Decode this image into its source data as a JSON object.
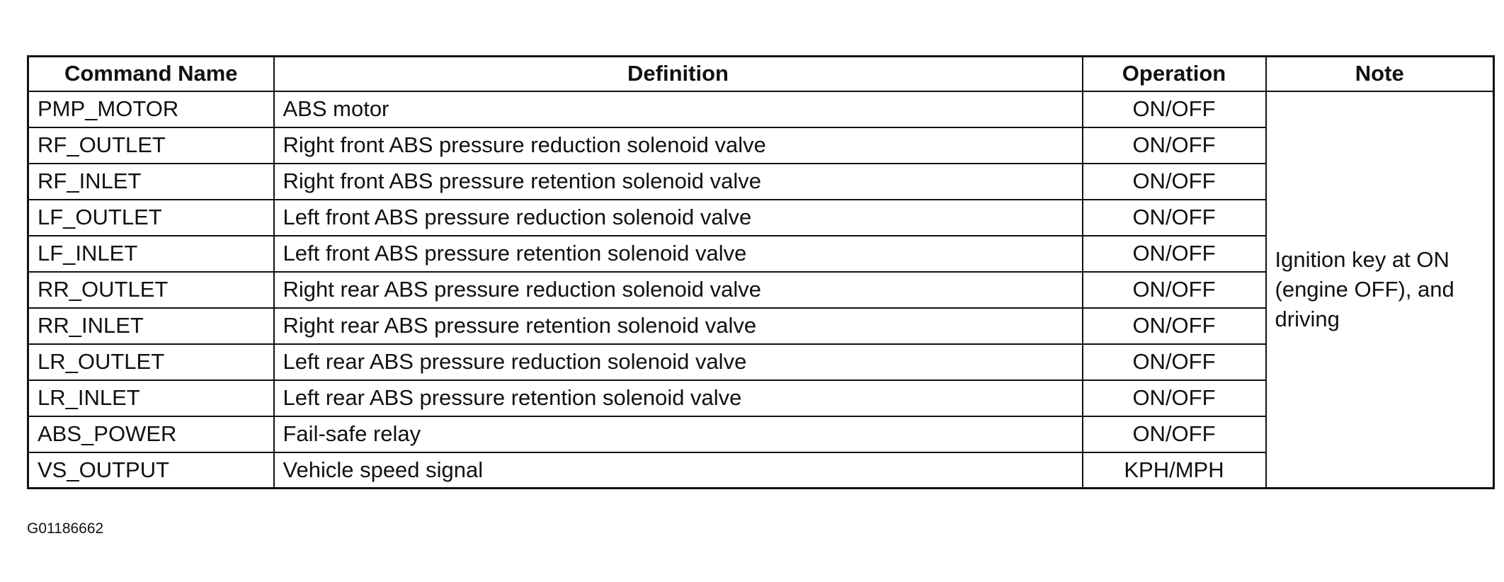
{
  "table": {
    "header": [
      "Command Name",
      "Definition",
      "Operation",
      "Note"
    ],
    "rows": [
      [
        "PMP_MOTOR",
        "ABS motor",
        "ON/OFF"
      ],
      [
        "RF_OUTLET",
        "Right front ABS pressure reduction solenoid valve",
        "ON/OFF"
      ],
      [
        "RF_INLET",
        "Right front ABS pressure retention solenoid valve",
        "ON/OFF"
      ],
      [
        "LF_OUTLET",
        "Left front ABS pressure reduction solenoid valve",
        "ON/OFF"
      ],
      [
        "LF_INLET",
        "Left front ABS pressure retention solenoid valve",
        "ON/OFF"
      ],
      [
        "RR_OUTLET",
        "Right rear ABS pressure reduction solenoid valve",
        "ON/OFF"
      ],
      [
        "RR_INLET",
        "Right rear ABS pressure retention solenoid valve",
        "ON/OFF"
      ],
      [
        "LR_OUTLET",
        "Left rear ABS pressure reduction solenoid valve",
        "ON/OFF"
      ],
      [
        "LR_INLET",
        "Left rear ABS pressure retention solenoid valve",
        "ON/OFF"
      ],
      [
        "ABS_POWER",
        "Fail-safe relay",
        "ON/OFF"
      ],
      [
        "VS_OUTPUT",
        "Vehicle speed signal",
        "KPH/MPH"
      ]
    ],
    "note": "Ignition key at ON (engine OFF), and driving"
  },
  "figure_id": "G01186662"
}
